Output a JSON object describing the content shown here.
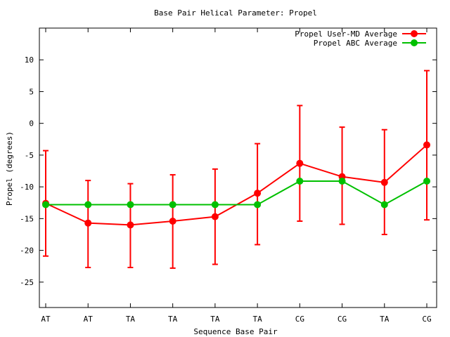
{
  "chart_data": {
    "type": "line",
    "title": "Base Pair Helical Parameter: Propel",
    "xlabel": "Sequence Base Pair",
    "ylabel": "Propel (degrees)",
    "categories": [
      "AT",
      "AT",
      "TA",
      "TA",
      "TA",
      "TA",
      "CG",
      "CG",
      "TA",
      "CG"
    ],
    "ylim": [
      -29,
      15
    ],
    "yticks": [
      -25,
      -20,
      -15,
      -10,
      -5,
      0,
      5,
      10
    ],
    "grid": false,
    "legend_position": "top-right",
    "series": [
      {
        "name": "Propel User-MD Average",
        "color": "#ff0000",
        "values": [
          -12.6,
          -15.7,
          -16.0,
          -15.4,
          -14.7,
          -11.0,
          -6.3,
          -8.4,
          -9.3,
          -3.4
        ],
        "error_low": [
          -20.9,
          -22.7,
          -22.7,
          -22.8,
          -22.2,
          -19.1,
          -15.4,
          -15.9,
          -17.5,
          -15.2
        ],
        "error_high": [
          -4.3,
          -9.0,
          -9.5,
          -8.1,
          -7.2,
          -3.2,
          2.8,
          -0.6,
          -1.0,
          8.3
        ]
      },
      {
        "name": "Propel ABC Average",
        "color": "#00c000",
        "values": [
          -12.8,
          -12.8,
          -12.8,
          -12.8,
          -12.8,
          -12.8,
          -9.1,
          -9.1,
          -12.8,
          -9.1
        ]
      }
    ]
  }
}
